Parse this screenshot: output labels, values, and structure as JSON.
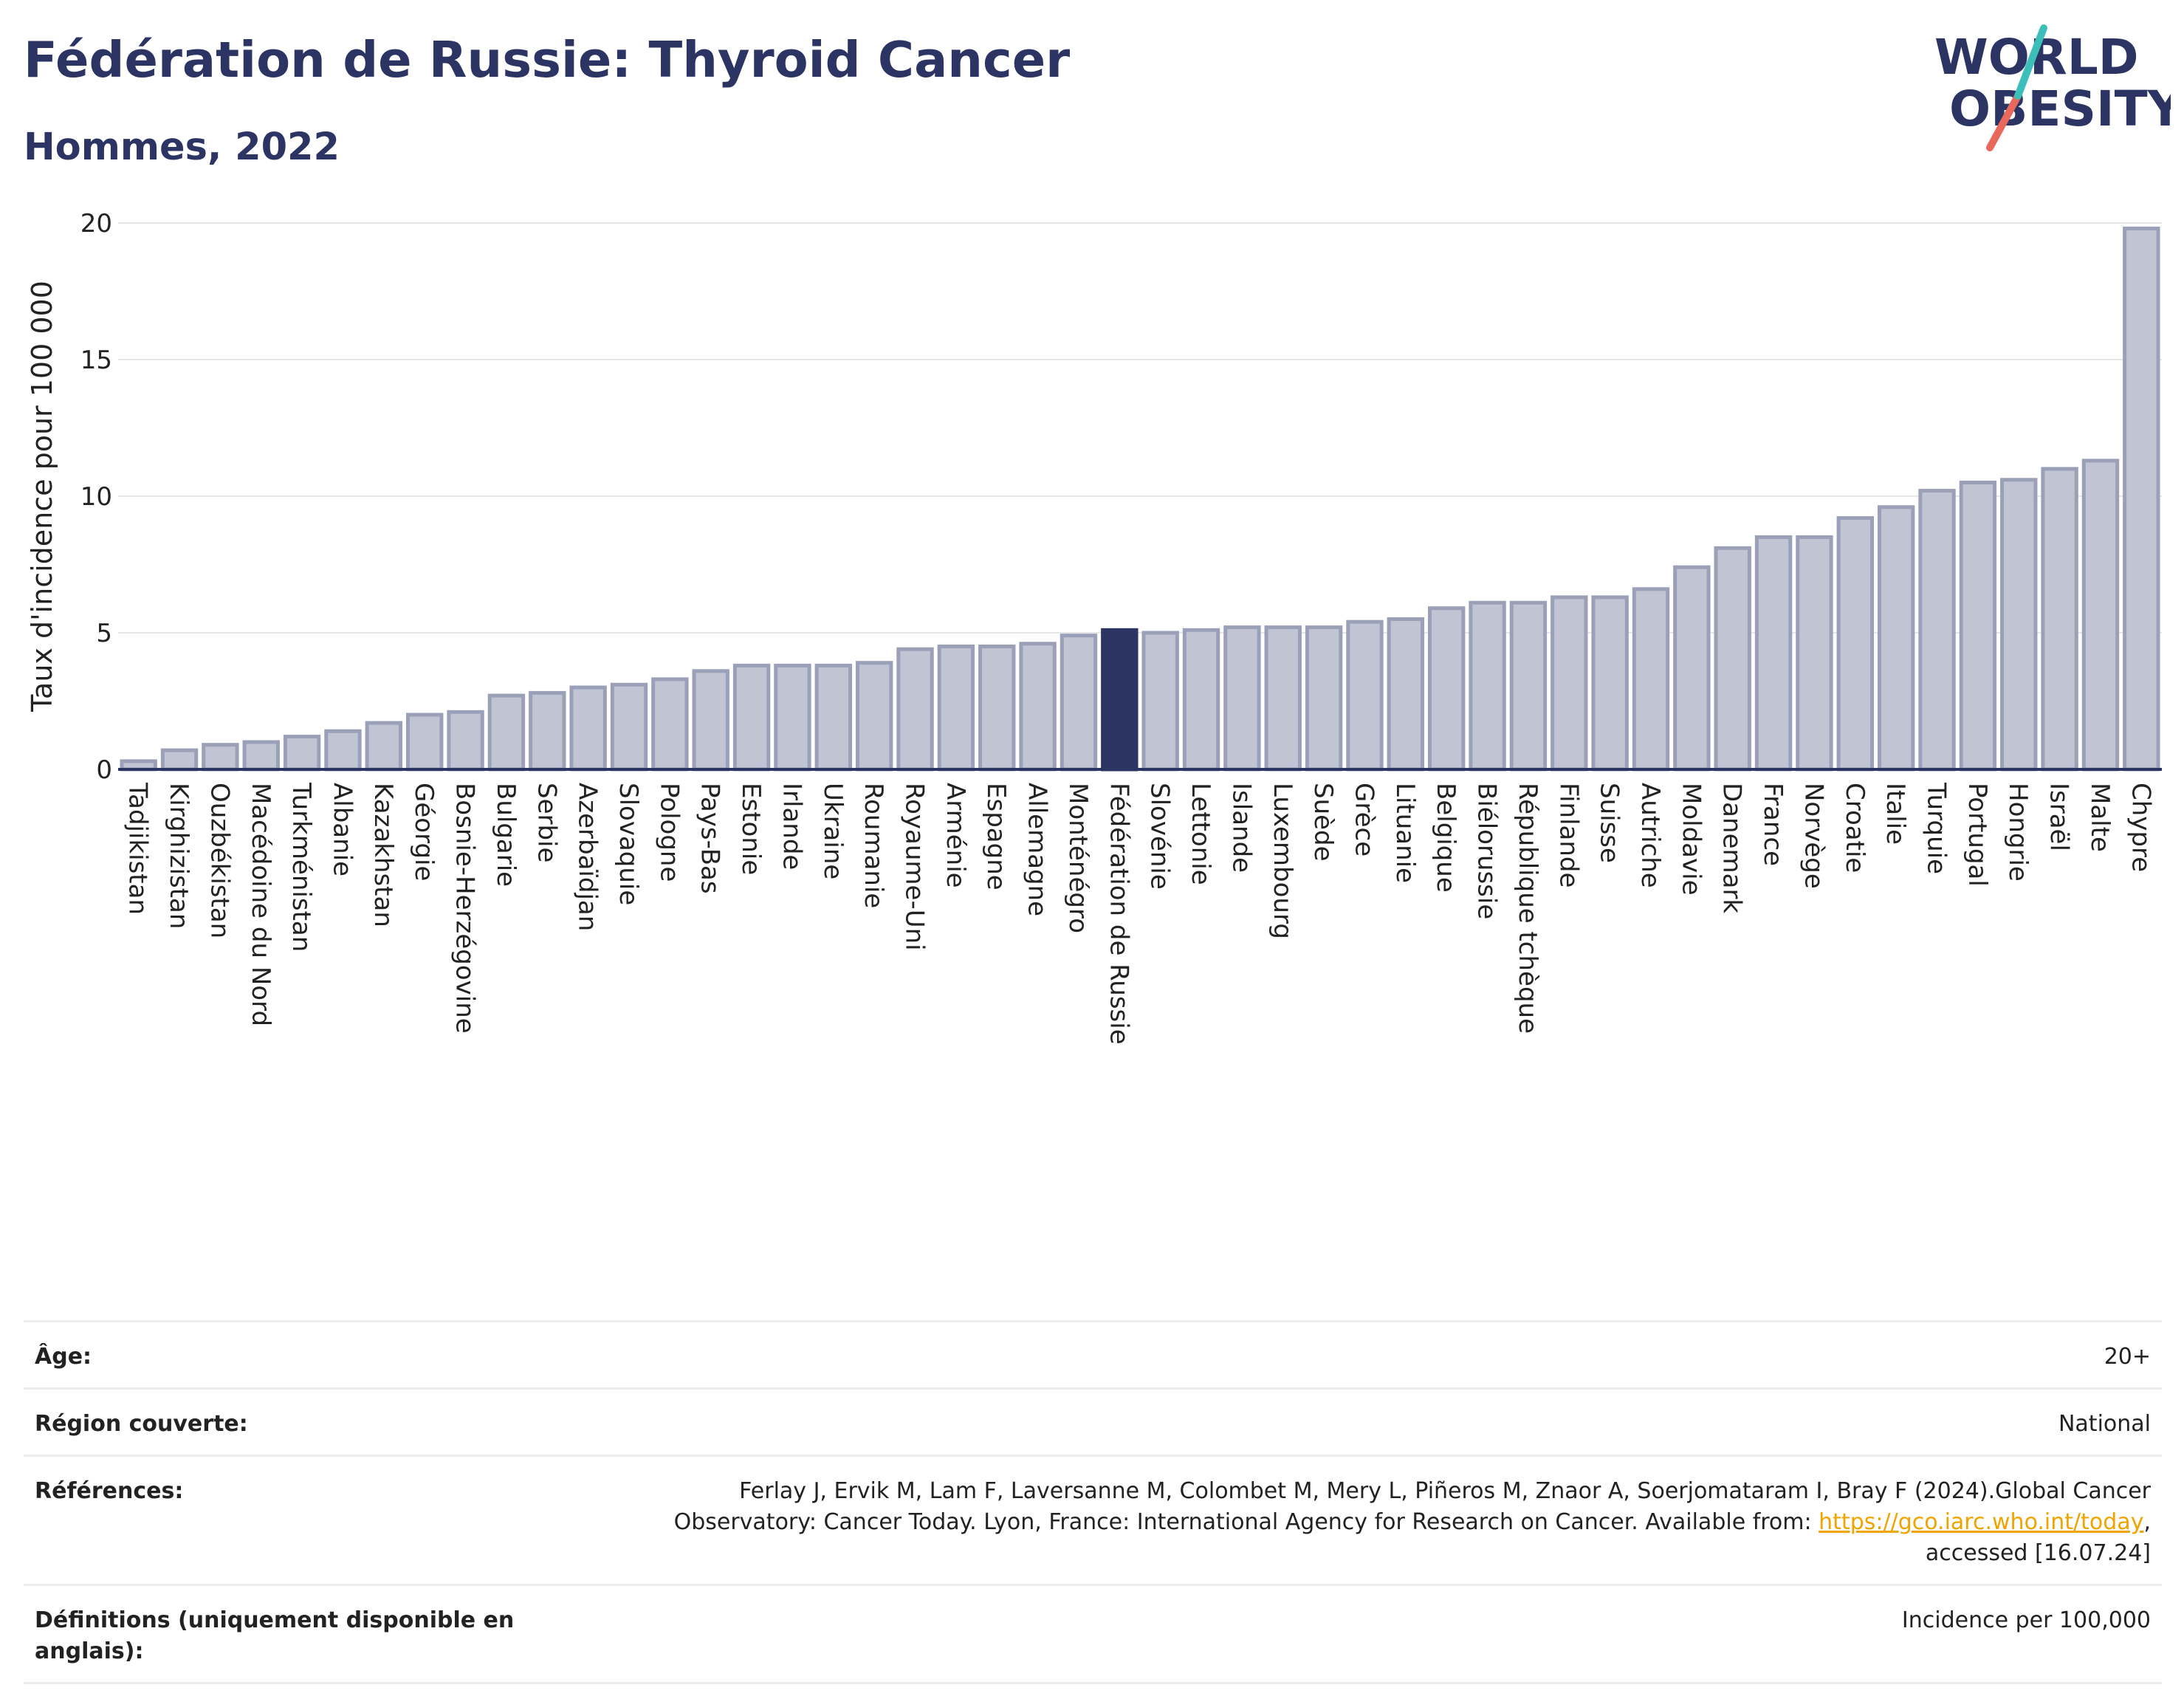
{
  "header": {
    "title": "Fédération de Russie: Thyroid Cancer",
    "subtitle": "Hommes, 2022",
    "logo_line1": "WORLD",
    "logo_line2": "OBESITY"
  },
  "colors": {
    "bar": "#c1c5d3",
    "bar_border": "#9aa0b8",
    "highlight": "#2b3463",
    "title": "#2b3463",
    "logo_teal": "#3cbfb8",
    "logo_red": "#e8695b",
    "link": "#f0a400"
  },
  "chart_data": {
    "type": "bar",
    "ylabel": "Taux d'incidence pour 100 000",
    "ylim": [
      0,
      20
    ],
    "yticks": [
      0,
      5,
      10,
      15,
      20
    ],
    "grid": true,
    "highlight": "Fédération de Russie",
    "categories": [
      "Tadjikistan",
      "Kirghizistan",
      "Ouzbékistan",
      "Macédoine du Nord",
      "Turkménistan",
      "Albanie",
      "Kazakhstan",
      "Géorgie",
      "Bosnie-Herzégovine",
      "Bulgarie",
      "Serbie",
      "Azerbaïdjan",
      "Slovaquie",
      "Pologne",
      "Pays-Bas",
      "Estonie",
      "Irlande",
      "Ukraine",
      "Roumanie",
      "Royaume-Uni",
      "Arménie",
      "Espagne",
      "Allemagne",
      "Monténégro",
      "Fédération de Russie",
      "Slovénie",
      "Lettonie",
      "Islande",
      "Luxembourg",
      "Suède",
      "Grèce",
      "Lituanie",
      "Belgique",
      "Biélorussie",
      "République tchèque",
      "Finlande",
      "Suisse",
      "Autriche",
      "Moldavie",
      "Danemark",
      "France",
      "Norvège",
      "Croatie",
      "Italie",
      "Turquie",
      "Portugal",
      "Hongrie",
      "Israël",
      "Malte",
      "Chypre"
    ],
    "values": [
      0.3,
      0.7,
      0.9,
      1.0,
      1.2,
      1.4,
      1.7,
      2.0,
      2.1,
      2.7,
      2.8,
      3.0,
      3.1,
      3.3,
      3.6,
      3.8,
      3.8,
      3.8,
      3.9,
      4.4,
      4.5,
      4.5,
      4.6,
      4.9,
      5.1,
      5.0,
      5.1,
      5.2,
      5.2,
      5.2,
      5.4,
      5.5,
      5.9,
      6.1,
      6.1,
      6.3,
      6.3,
      6.6,
      7.4,
      8.1,
      8.5,
      8.5,
      9.2,
      9.6,
      10.2,
      10.5,
      10.6,
      11.0,
      11.3,
      19.8
    ]
  },
  "meta": {
    "age_label": "Âge:",
    "age_value": "20+",
    "region_label": "Région couverte:",
    "region_value": "National",
    "refs_label": "Références:",
    "refs_line1": "Ferlay J, Ervik M, Lam F, Laversanne M, Colombet M, Mery L, Piñeros M, Znaor A, Soerjomataram I, Bray F (2024).Global Cancer",
    "refs_line2": "Observatory: Cancer Today. Lyon, France: International Agency for Research on Cancer. Available from: ",
    "refs_link": "https://gco.iarc.who.int/today",
    "refs_line3": "accessed [16.07.24]",
    "defs_label": "Définitions (uniquement disponible en anglais):",
    "defs_value": "Incidence per 100,000"
  }
}
